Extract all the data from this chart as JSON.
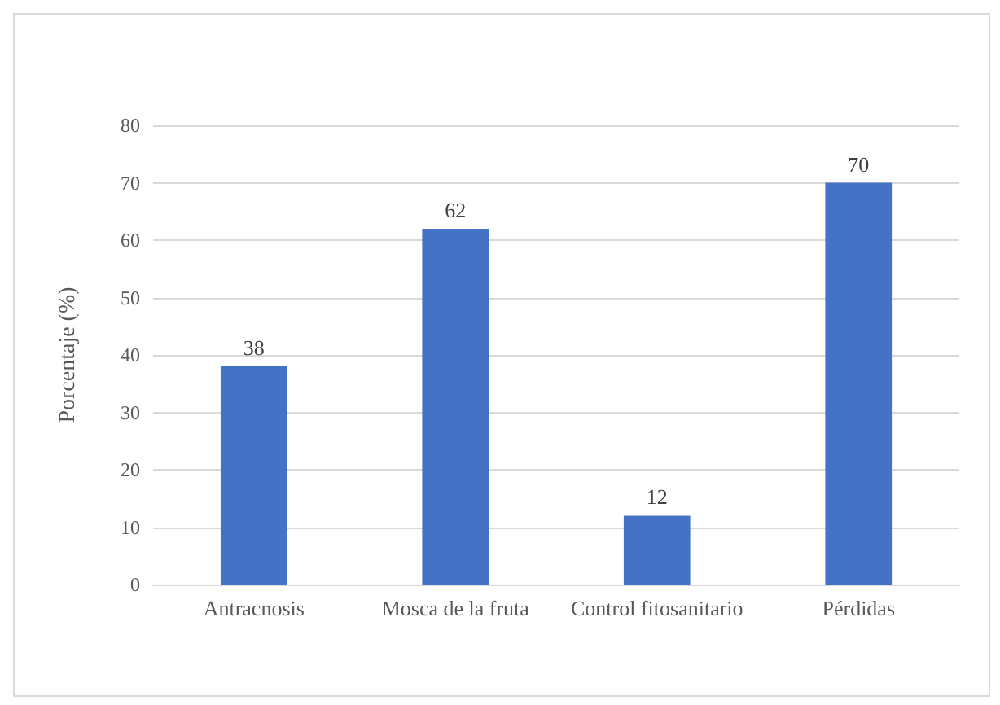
{
  "chart_data": {
    "type": "bar",
    "ylabel": "Porcentaje (%)",
    "categories": [
      "Antracnosis",
      "Mosca de la fruta",
      "Control fitosanitario",
      "Pérdidas"
    ],
    "values": [
      38,
      62,
      12,
      70
    ],
    "color": "#4472c4",
    "ylim": [
      0,
      80
    ],
    "yticks": [
      0,
      10,
      20,
      30,
      40,
      50,
      60,
      70,
      80
    ],
    "grid": "y",
    "data_labels": true
  }
}
